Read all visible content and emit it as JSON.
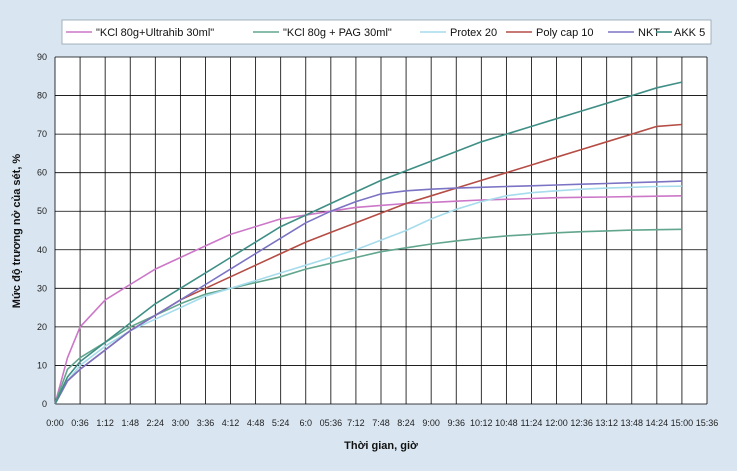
{
  "chart_data": {
    "type": "line",
    "title": "",
    "xlabel": "Thời gian, giờ",
    "ylabel": "Mức độ trương nở của sét, %",
    "ylim": [
      0,
      90
    ],
    "yticks": [
      "0",
      "10",
      "20",
      "30",
      "40",
      "50",
      "60",
      "70",
      "80",
      "90"
    ],
    "xlim": [
      0,
      936
    ],
    "xticks": [
      "0:00",
      "0:36",
      "1:12",
      "1:48",
      "2:24",
      "3:00",
      "3:36",
      "4:12",
      "4:48",
      "5:24",
      "6:0",
      "05:36",
      "7:12",
      "7:48",
      "8:24",
      "9:00",
      "9:36",
      "10:12",
      "10:48",
      "11:24",
      "12:00",
      "12:36",
      "13:12",
      "13:48",
      "14:24",
      "15:00",
      "15:36"
    ],
    "grid": true,
    "legend_position": "top",
    "series": [
      {
        "name": "\"KCl 80g+Ultrahib 30ml\"",
        "color": "#cc77c8",
        "x": [
          0,
          18,
          36,
          72,
          108,
          144,
          180,
          216,
          252,
          288,
          324,
          360,
          396,
          432,
          468,
          504,
          540,
          576,
          612,
          648,
          684,
          720,
          756,
          792,
          828,
          864,
          900
        ],
        "y": [
          0,
          12,
          20,
          27,
          31,
          35,
          38,
          41,
          44,
          46,
          48,
          49,
          50,
          51,
          51.5,
          52,
          52.3,
          52.6,
          52.9,
          53.1,
          53.3,
          53.5,
          53.6,
          53.7,
          53.8,
          53.9,
          54
        ]
      },
      {
        "name": "\"KCl 80g + PAG 30ml\"",
        "color": "#62a68e",
        "x": [
          0,
          18,
          36,
          72,
          108,
          144,
          180,
          216,
          252,
          288,
          324,
          360,
          396,
          432,
          468,
          504,
          540,
          576,
          612,
          648,
          684,
          720,
          756,
          792,
          828,
          864,
          900
        ],
        "y": [
          0,
          9,
          12,
          16,
          20,
          23,
          26,
          28.5,
          30,
          31.5,
          33,
          35,
          36.5,
          38,
          39.5,
          40.5,
          41.5,
          42.3,
          43,
          43.6,
          44,
          44.4,
          44.7,
          44.9,
          45.1,
          45.2,
          45.3
        ]
      },
      {
        "name": "Protex 20",
        "color": "#a6dcec",
        "x": [
          0,
          18,
          36,
          72,
          108,
          144,
          180,
          216,
          252,
          288,
          324,
          360,
          396,
          432,
          468,
          504,
          540,
          576,
          612,
          648,
          684,
          720,
          756,
          792,
          828,
          864,
          900
        ],
        "y": [
          0,
          6,
          10,
          15,
          19,
          22,
          25,
          28,
          30,
          32,
          34,
          36,
          38,
          40,
          42.5,
          45,
          48,
          50.5,
          52.5,
          54,
          54.8,
          55.3,
          55.7,
          56,
          56.2,
          56.4,
          56.5
        ]
      },
      {
        "name": "Poly cap 10",
        "color": "#b54d45",
        "x": [
          0,
          18,
          36,
          72,
          108,
          144,
          180,
          216,
          252,
          288,
          324,
          360,
          396,
          432,
          468,
          504,
          540,
          576,
          612,
          648,
          684,
          720,
          756,
          792,
          828,
          864,
          900
        ],
        "y": [
          0,
          6,
          9,
          14,
          19,
          23,
          27,
          30,
          33,
          36,
          39,
          42,
          44.5,
          47,
          49.5,
          52,
          54,
          56,
          58,
          60,
          62,
          64,
          66,
          68,
          70,
          72,
          72.5
        ]
      },
      {
        "name": "NKT",
        "color": "#7b73c4",
        "x": [
          0,
          18,
          36,
          72,
          108,
          144,
          180,
          216,
          252,
          288,
          324,
          360,
          396,
          432,
          468,
          504,
          540,
          576,
          612,
          648,
          684,
          720,
          756,
          792,
          828,
          864,
          900
        ],
        "y": [
          0,
          6,
          9,
          14,
          19,
          23,
          27,
          31,
          35,
          39,
          43,
          47,
          50,
          52.5,
          54.5,
          55.3,
          55.7,
          56,
          56.2,
          56.4,
          56.6,
          56.8,
          57,
          57.2,
          57.4,
          57.6,
          57.8
        ]
      },
      {
        "name": "AKK 5",
        "color": "#3f8f86",
        "x": [
          0,
          18,
          36,
          72,
          108,
          144,
          180,
          216,
          252,
          288,
          324,
          360,
          396,
          432,
          468,
          504,
          540,
          576,
          612,
          648,
          684,
          720,
          756,
          792,
          828,
          864,
          900
        ],
        "y": [
          0,
          7,
          11,
          16,
          21,
          26,
          30,
          34,
          38,
          42,
          46,
          49,
          52,
          55,
          58,
          60.5,
          63,
          65.5,
          68,
          70,
          72,
          74,
          76,
          78,
          80,
          82,
          83.5
        ]
      }
    ]
  }
}
